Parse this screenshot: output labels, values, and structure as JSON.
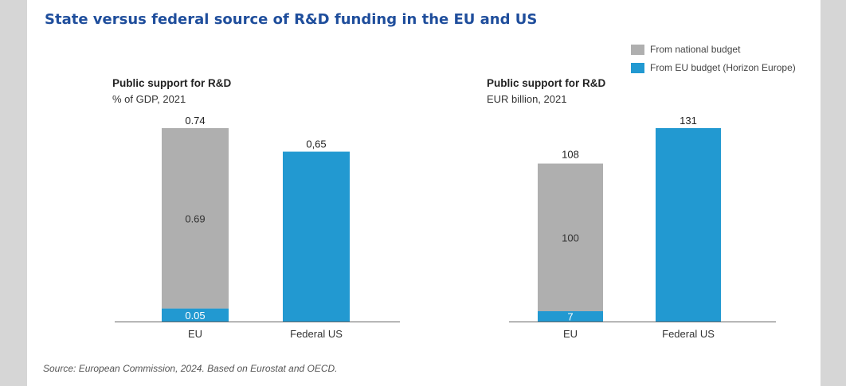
{
  "title": "State versus federal source of R&D funding in the EU and US",
  "legend": [
    {
      "label": "From national budget",
      "color": "#afafaf"
    },
    {
      "label": "From EU budget (Horizon Europe)",
      "color": "#2299d1"
    }
  ],
  "colors": {
    "national": "#afafaf",
    "eu": "#2299d1",
    "us": "#2299d1"
  },
  "source": "Source: European Commission, 2024. Based on Eurostat and OECD.",
  "chart_data": [
    {
      "type": "bar",
      "stacked": true,
      "title": "Public support for R&D",
      "subtitle": "% of GDP, 2021",
      "categories": [
        "EU",
        "Federal US"
      ],
      "ylim": [
        0,
        0.74
      ],
      "bars": [
        {
          "category": "EU",
          "total": 0.74,
          "total_label": "0.74",
          "segments": [
            {
              "series": "From EU budget (Horizon Europe)",
              "value": 0.05,
              "label": "0.05",
              "color": "#2299d1"
            },
            {
              "series": "From national budget",
              "value": 0.69,
              "label": "0.69",
              "color": "#afafaf"
            }
          ]
        },
        {
          "category": "Federal US",
          "total": 0.65,
          "total_label": "0,65",
          "segments": [
            {
              "series": "Federal US",
              "value": 0.65,
              "label": "",
              "color": "#2299d1"
            }
          ]
        }
      ]
    },
    {
      "type": "bar",
      "stacked": true,
      "title": "Public support for R&D",
      "subtitle": "EUR billion, 2021",
      "categories": [
        "EU",
        "Federal US"
      ],
      "ylim": [
        0,
        131
      ],
      "bars": [
        {
          "category": "EU",
          "total": 108,
          "total_label": "108",
          "segments": [
            {
              "series": "From EU budget (Horizon Europe)",
              "value": 7,
              "label": "7",
              "color": "#2299d1"
            },
            {
              "series": "From national budget",
              "value": 100,
              "label": "100",
              "color": "#afafaf"
            }
          ]
        },
        {
          "category": "Federal US",
          "total": 131,
          "total_label": "131",
          "segments": [
            {
              "series": "Federal US",
              "value": 131,
              "label": "",
              "color": "#2299d1"
            }
          ]
        }
      ]
    }
  ]
}
